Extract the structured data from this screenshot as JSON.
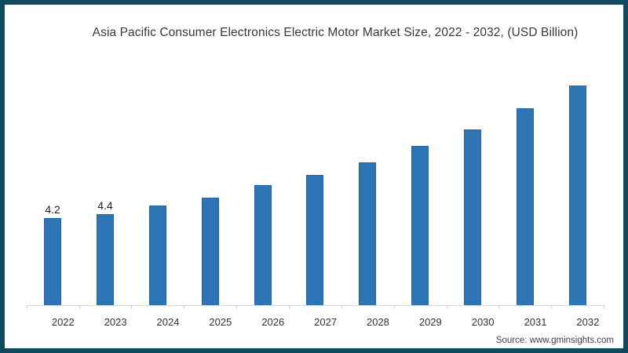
{
  "page": {
    "source": "Source: www.gminsights.com"
  },
  "colors": {
    "frame_border": "#0E4A5E",
    "bar_fill": "#2E75B6",
    "bar_edge": "#2265A3",
    "axis_line": "#D8D8D8",
    "tick": "#C9C9C9",
    "title_text": "#383838",
    "value_label_text": "#1F1F1F",
    "axis_label_text": "#333333",
    "source_text": "#3D3D3D"
  },
  "chart_data": {
    "type": "bar",
    "title": "Asia Pacific Consumer Electronics Electric Motor Market Size, 2022 - 2032, (USD Billion)",
    "unit": "USD Billion",
    "categories": [
      "2022",
      "2023",
      "2024",
      "2025",
      "2026",
      "2027",
      "2028",
      "2029",
      "2030",
      "2031",
      "2032"
    ],
    "values": [
      4.2,
      4.4,
      4.8,
      5.2,
      5.8,
      6.3,
      6.9,
      7.7,
      8.5,
      9.5,
      10.6
    ],
    "data_labels": [
      "4.2",
      "4.4",
      "",
      "",
      "",
      "",
      "",
      "",
      "",
      "",
      ""
    ],
    "xlabel": "",
    "ylabel": "",
    "ylim": [
      0,
      11.5
    ],
    "grid": false,
    "legend": "none"
  }
}
